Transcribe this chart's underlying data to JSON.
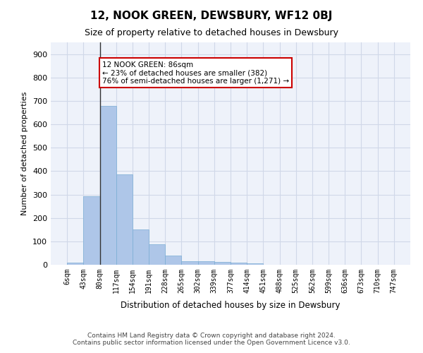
{
  "title": "12, NOOK GREEN, DEWSBURY, WF12 0BJ",
  "subtitle": "Size of property relative to detached houses in Dewsbury",
  "xlabel": "Distribution of detached houses by size in Dewsbury",
  "ylabel": "Number of detached properties",
  "footer_line1": "Contains HM Land Registry data © Crown copyright and database right 2024.",
  "footer_line2": "Contains public sector information licensed under the Open Government Licence v3.0.",
  "bin_labels": [
    "6sqm",
    "43sqm",
    "80sqm",
    "117sqm",
    "154sqm",
    "191sqm",
    "228sqm",
    "265sqm",
    "302sqm",
    "339sqm",
    "377sqm",
    "414sqm",
    "451sqm",
    "488sqm",
    "525sqm",
    "562sqm",
    "599sqm",
    "636sqm",
    "673sqm",
    "710sqm",
    "747sqm"
  ],
  "bar_values": [
    8,
    293,
    678,
    385,
    152,
    88,
    40,
    15,
    15,
    11,
    8,
    5,
    0,
    0,
    0,
    0,
    0,
    0,
    0,
    0
  ],
  "bar_color": "#aec6e8",
  "bar_edge_color": "#7aadd4",
  "grid_color": "#d0d8e8",
  "background_color": "#eef2fa",
  "property_size": 86,
  "property_bin_index": 2,
  "annotation_text": "12 NOOK GREEN: 86sqm\n← 23% of detached houses are smaller (382)\n76% of semi-detached houses are larger (1,271) →",
  "annotation_box_color": "#ffffff",
  "annotation_box_edge_color": "#cc0000",
  "vline_color": "#333333",
  "ylim": [
    0,
    950
  ],
  "yticks": [
    0,
    100,
    200,
    300,
    400,
    500,
    600,
    700,
    800,
    900
  ]
}
